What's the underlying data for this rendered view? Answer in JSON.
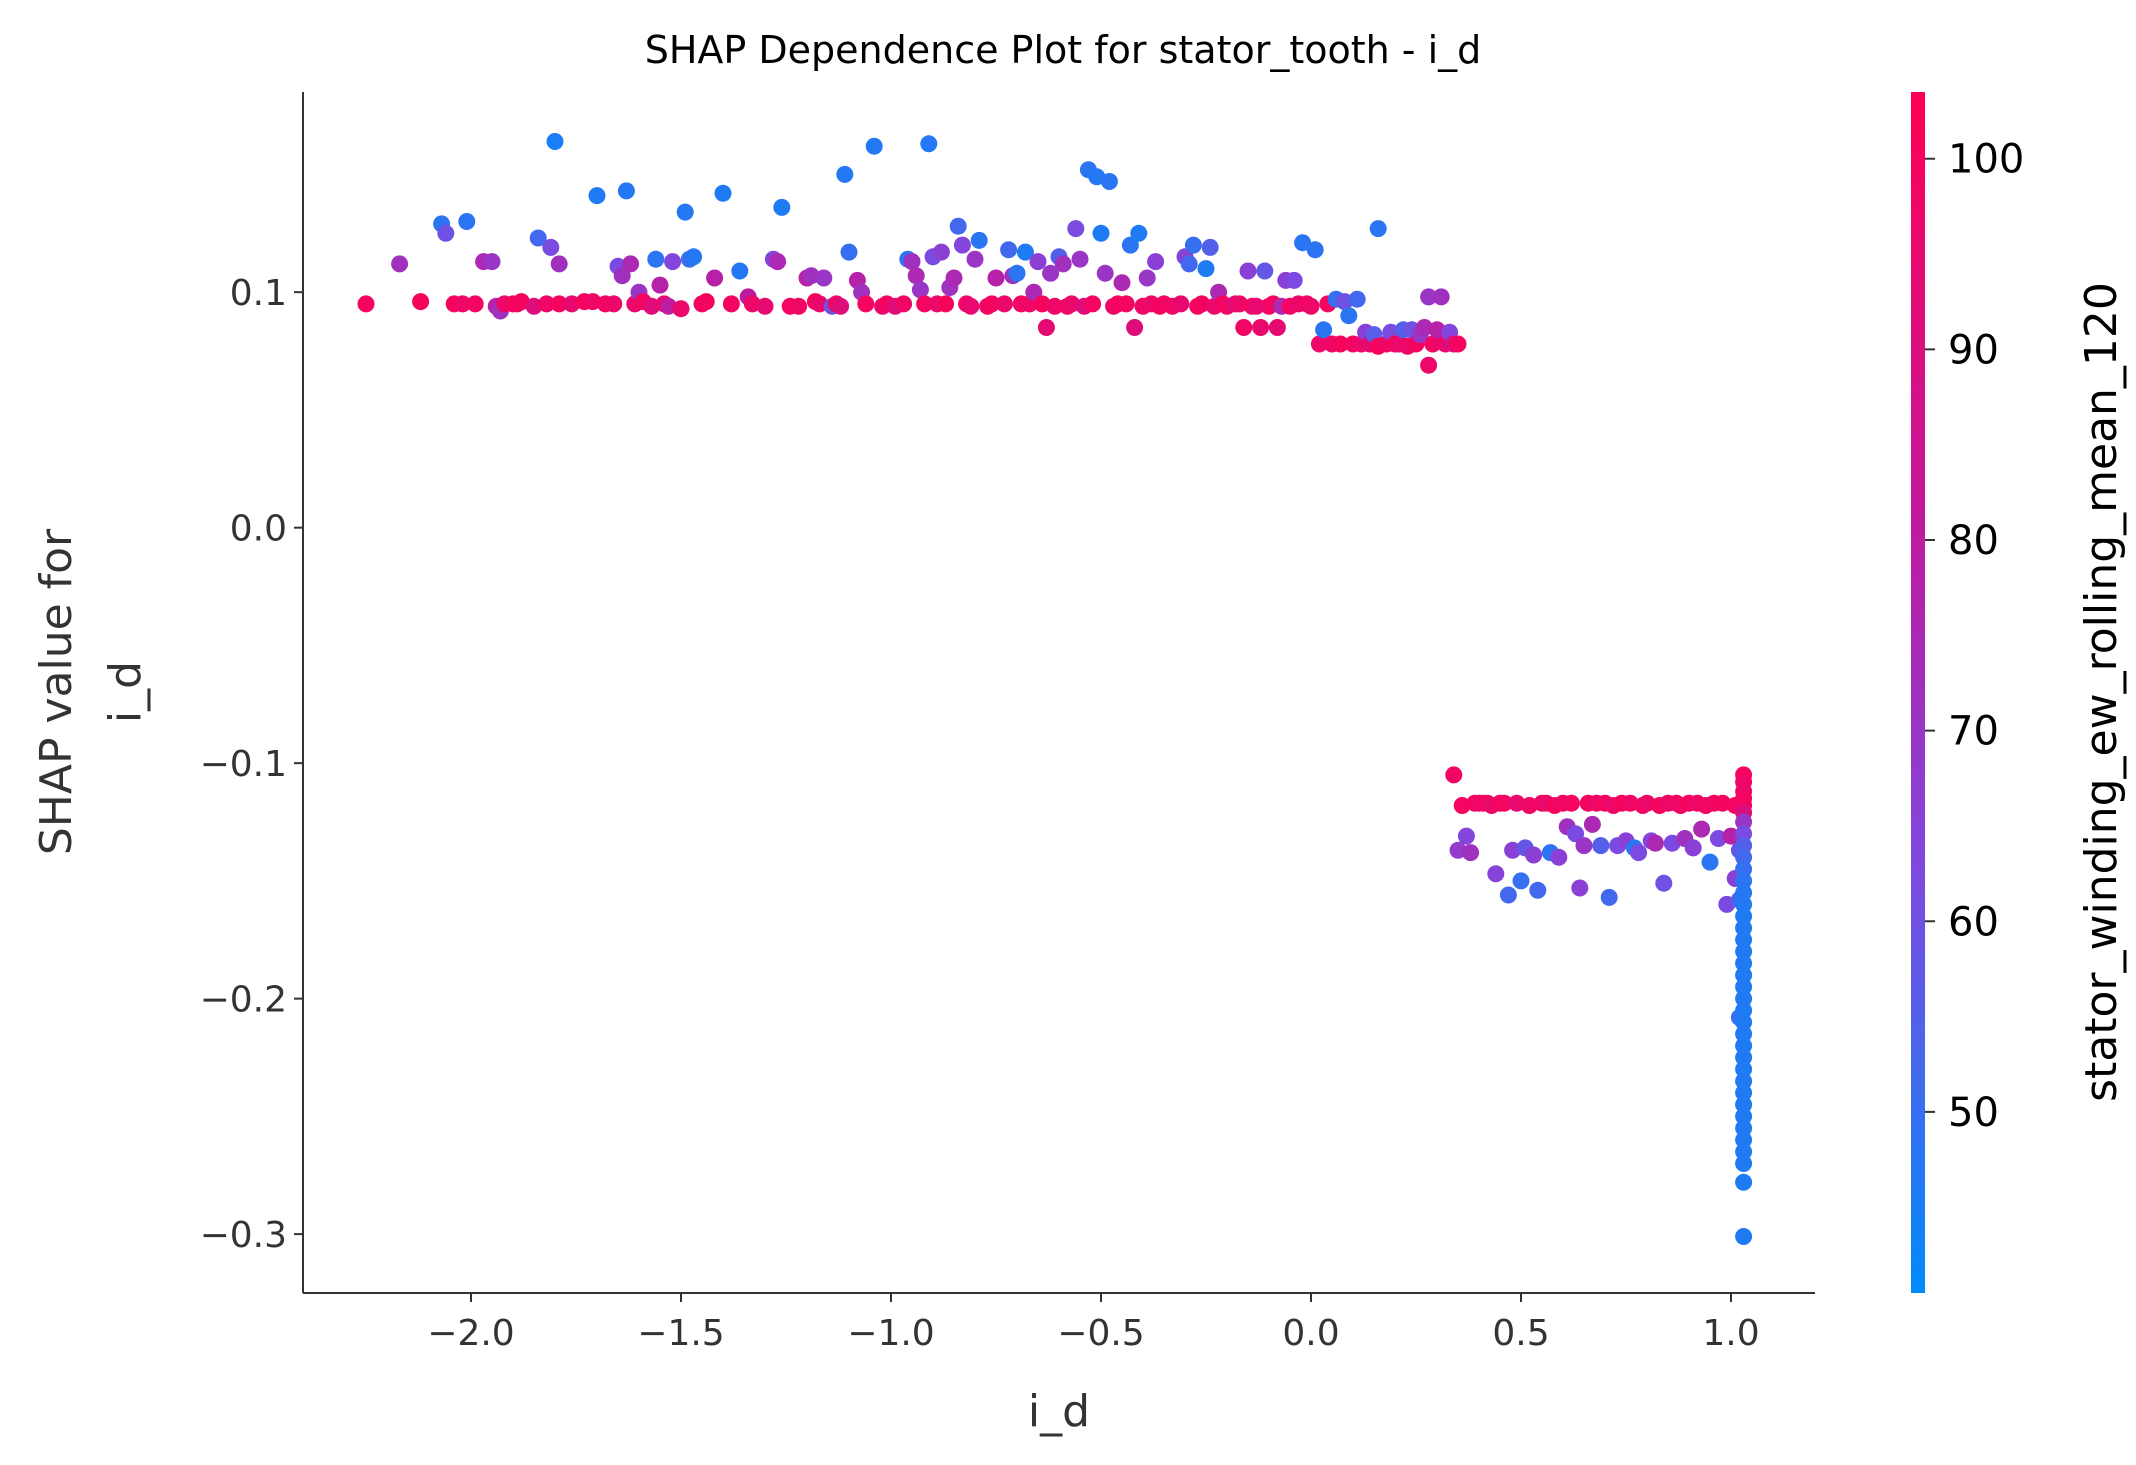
{
  "chart_data": {
    "type": "scatter",
    "title": "SHAP Dependence Plot for stator_tooth - i_d",
    "xlabel": "i_d",
    "ylabel_lines": [
      "SHAP value for",
      "i_d"
    ],
    "xlim": [
      -2.4,
      1.2
    ],
    "ylim": [
      -0.325,
      0.185
    ],
    "x_ticks": [
      -2.0,
      -1.5,
      -1.0,
      -0.5,
      0.0,
      0.5,
      1.0
    ],
    "x_tick_labels": [
      "−2.0",
      "−1.5",
      "−1.0",
      "−0.5",
      "0.0",
      "0.5",
      "1.0"
    ],
    "y_ticks": [
      0.1,
      0.0,
      -0.1,
      -0.2,
      -0.3
    ],
    "y_tick_labels": [
      "0.1",
      "0.0",
      "−0.1",
      "−0.2",
      "−0.3"
    ],
    "grid": false,
    "legend": "none",
    "colorbar": {
      "label": "stator_winding_ew_rolling_mean_120",
      "range": [
        40.5,
        103.5
      ],
      "ticks": [
        50,
        60,
        70,
        80,
        90,
        100
      ],
      "tick_labels": [
        "50",
        "60",
        "70",
        "80",
        "90",
        "100"
      ],
      "colormap": [
        "#008bfb",
        "#7e49e0",
        "#c2189c",
        "#ff0052"
      ]
    },
    "points": [
      [
        -2.25,
        0.095,
        100
      ],
      [
        -2.17,
        0.112,
        72
      ],
      [
        -2.12,
        0.096,
        100
      ],
      [
        -2.07,
        0.129,
        48
      ],
      [
        -2.06,
        0.125,
        60
      ],
      [
        -2.04,
        0.095,
        100
      ],
      [
        -2.02,
        0.095,
        98
      ],
      [
        -2.01,
        0.13,
        48
      ],
      [
        -1.99,
        0.095,
        99
      ],
      [
        -1.97,
        0.113,
        75
      ],
      [
        -1.95,
        0.113,
        70
      ],
      [
        -1.94,
        0.094,
        78
      ],
      [
        -1.93,
        0.092,
        72
      ],
      [
        -1.92,
        0.095,
        96
      ],
      [
        -1.9,
        0.095,
        100
      ],
      [
        -1.89,
        0.095,
        99
      ],
      [
        -1.88,
        0.096,
        100
      ],
      [
        -1.85,
        0.094,
        92
      ],
      [
        -1.84,
        0.123,
        52
      ],
      [
        -1.82,
        0.095,
        98
      ],
      [
        -1.81,
        0.119,
        62
      ],
      [
        -1.8,
        0.164,
        45
      ],
      [
        -1.79,
        0.095,
        100
      ],
      [
        -1.79,
        0.112,
        72
      ],
      [
        -1.76,
        0.095,
        95
      ],
      [
        -1.73,
        0.096,
        100
      ],
      [
        -1.71,
        0.096,
        98
      ],
      [
        -1.7,
        0.141,
        46
      ],
      [
        -1.68,
        0.095,
        99
      ],
      [
        -1.66,
        0.095,
        97
      ],
      [
        -1.65,
        0.111,
        62
      ],
      [
        -1.64,
        0.107,
        72
      ],
      [
        -1.63,
        0.143,
        47
      ],
      [
        -1.62,
        0.112,
        75
      ],
      [
        -1.61,
        0.095,
        96
      ],
      [
        -1.6,
        0.1,
        70
      ],
      [
        -1.59,
        0.096,
        99
      ],
      [
        -1.57,
        0.094,
        92
      ],
      [
        -1.56,
        0.114,
        48
      ],
      [
        -1.55,
        0.103,
        78
      ],
      [
        -1.54,
        0.095,
        95
      ],
      [
        -1.53,
        0.094,
        80
      ],
      [
        -1.52,
        0.113,
        64
      ],
      [
        -1.5,
        0.093,
        96
      ],
      [
        -1.49,
        0.134,
        47
      ],
      [
        -1.48,
        0.114,
        50
      ],
      [
        -1.47,
        0.115,
        47
      ],
      [
        -1.45,
        0.095,
        99
      ],
      [
        -1.44,
        0.096,
        100
      ],
      [
        -1.42,
        0.106,
        78
      ],
      [
        -1.4,
        0.142,
        46
      ],
      [
        -1.38,
        0.095,
        99
      ],
      [
        -1.36,
        0.109,
        47
      ],
      [
        -1.34,
        0.098,
        80
      ],
      [
        -1.33,
        0.095,
        97
      ],
      [
        -1.3,
        0.094,
        95
      ],
      [
        -1.28,
        0.114,
        65
      ],
      [
        -1.27,
        0.113,
        75
      ],
      [
        -1.26,
        0.136,
        46
      ],
      [
        -1.24,
        0.094,
        99
      ],
      [
        -1.22,
        0.094,
        98
      ],
      [
        -1.2,
        0.106,
        78
      ],
      [
        -1.19,
        0.107,
        72
      ],
      [
        -1.18,
        0.096,
        100
      ],
      [
        -1.17,
        0.095,
        96
      ],
      [
        -1.16,
        0.106,
        70
      ],
      [
        -1.14,
        0.094,
        60
      ],
      [
        -1.13,
        0.095,
        98
      ],
      [
        -1.12,
        0.094,
        92
      ],
      [
        -1.11,
        0.15,
        47
      ],
      [
        -1.1,
        0.117,
        50
      ],
      [
        -1.08,
        0.105,
        78
      ],
      [
        -1.07,
        0.1,
        72
      ],
      [
        -1.06,
        0.095,
        99
      ],
      [
        -1.04,
        0.162,
        47
      ],
      [
        -1.02,
        0.094,
        96
      ],
      [
        -1.01,
        0.095,
        100
      ],
      [
        -0.99,
        0.094,
        92
      ],
      [
        -0.97,
        0.095,
        98
      ],
      [
        -0.96,
        0.114,
        48
      ],
      [
        -0.95,
        0.113,
        72
      ],
      [
        -0.94,
        0.107,
        75
      ],
      [
        -0.93,
        0.101,
        70
      ],
      [
        -0.92,
        0.095,
        99
      ],
      [
        -0.91,
        0.163,
        47
      ],
      [
        -0.9,
        0.115,
        62
      ],
      [
        -0.89,
        0.095,
        96
      ],
      [
        -0.88,
        0.117,
        66
      ],
      [
        -0.87,
        0.095,
        100
      ],
      [
        -0.86,
        0.102,
        72
      ],
      [
        -0.85,
        0.106,
        75
      ],
      [
        -0.84,
        0.128,
        52
      ],
      [
        -0.83,
        0.12,
        64
      ],
      [
        -0.82,
        0.095,
        98
      ],
      [
        -0.81,
        0.094,
        95
      ],
      [
        -0.8,
        0.114,
        70
      ],
      [
        -0.79,
        0.122,
        48
      ],
      [
        -0.77,
        0.094,
        99
      ],
      [
        -0.76,
        0.095,
        100
      ],
      [
        -0.75,
        0.106,
        78
      ],
      [
        -0.73,
        0.095,
        96
      ],
      [
        -0.72,
        0.118,
        52
      ],
      [
        -0.71,
        0.107,
        72
      ],
      [
        -0.7,
        0.108,
        48
      ],
      [
        -0.69,
        0.095,
        99
      ],
      [
        -0.68,
        0.117,
        46
      ],
      [
        -0.67,
        0.095,
        98
      ],
      [
        -0.66,
        0.1,
        75
      ],
      [
        -0.65,
        0.113,
        66
      ],
      [
        -0.64,
        0.095,
        100
      ],
      [
        -0.63,
        0.085,
        94
      ],
      [
        -0.62,
        0.108,
        70
      ],
      [
        -0.61,
        0.094,
        97
      ],
      [
        -0.6,
        0.115,
        55
      ],
      [
        -0.59,
        0.112,
        72
      ],
      [
        -0.58,
        0.094,
        99
      ],
      [
        -0.57,
        0.095,
        96
      ],
      [
        -0.56,
        0.127,
        62
      ],
      [
        -0.55,
        0.114,
        70
      ],
      [
        -0.54,
        0.094,
        92
      ],
      [
        -0.53,
        0.152,
        48
      ],
      [
        -0.52,
        0.095,
        99
      ],
      [
        -0.51,
        0.149,
        47
      ],
      [
        -0.5,
        0.125,
        46
      ],
      [
        -0.49,
        0.108,
        70
      ],
      [
        -0.48,
        0.147,
        48
      ],
      [
        -0.47,
        0.094,
        96
      ],
      [
        -0.46,
        0.095,
        100
      ],
      [
        -0.45,
        0.104,
        75
      ],
      [
        -0.44,
        0.095,
        99
      ],
      [
        -0.43,
        0.12,
        48
      ],
      [
        -0.42,
        0.085,
        92
      ],
      [
        -0.41,
        0.125,
        46
      ],
      [
        -0.4,
        0.094,
        98
      ],
      [
        -0.39,
        0.106,
        70
      ],
      [
        -0.38,
        0.095,
        96
      ],
      [
        -0.37,
        0.113,
        66
      ],
      [
        -0.36,
        0.094,
        100
      ],
      [
        -0.35,
        0.095,
        99
      ],
      [
        -0.33,
        0.094,
        98
      ],
      [
        -0.31,
        0.095,
        95
      ],
      [
        -0.3,
        0.115,
        65
      ],
      [
        -0.29,
        0.112,
        52
      ],
      [
        -0.28,
        0.12,
        50
      ],
      [
        -0.27,
        0.094,
        99
      ],
      [
        -0.26,
        0.095,
        100
      ],
      [
        -0.25,
        0.11,
        46
      ],
      [
        -0.24,
        0.119,
        55
      ],
      [
        -0.23,
        0.094,
        96
      ],
      [
        -0.22,
        0.1,
        75
      ],
      [
        -0.21,
        0.095,
        99
      ],
      [
        -0.2,
        0.094,
        98
      ],
      [
        -0.18,
        0.095,
        92
      ],
      [
        -0.17,
        0.095,
        97
      ],
      [
        -0.16,
        0.085,
        98
      ],
      [
        -0.15,
        0.109,
        66
      ],
      [
        -0.14,
        0.094,
        99
      ],
      [
        -0.13,
        0.094,
        95
      ],
      [
        -0.12,
        0.085,
        96
      ],
      [
        -0.11,
        0.109,
        58
      ],
      [
        -0.1,
        0.094,
        98
      ],
      [
        -0.09,
        0.095,
        99
      ],
      [
        -0.08,
        0.085,
        94
      ],
      [
        -0.07,
        0.094,
        75
      ],
      [
        -0.06,
        0.105,
        66
      ],
      [
        -0.05,
        0.094,
        99
      ],
      [
        -0.04,
        0.105,
        62
      ],
      [
        -0.03,
        0.095,
        96
      ],
      [
        -0.02,
        0.121,
        48
      ],
      [
        -0.01,
        0.095,
        99
      ],
      [
        0.0,
        0.094,
        97
      ],
      [
        0.01,
        0.118,
        48
      ],
      [
        0.02,
        0.078,
        97
      ],
      [
        0.03,
        0.084,
        48
      ],
      [
        0.04,
        0.095,
        99
      ],
      [
        0.05,
        0.078,
        98
      ],
      [
        0.06,
        0.097,
        50
      ],
      [
        0.07,
        0.078,
        100
      ],
      [
        0.08,
        0.096,
        60
      ],
      [
        0.09,
        0.09,
        48
      ],
      [
        0.1,
        0.078,
        99
      ],
      [
        0.11,
        0.097,
        52
      ],
      [
        0.12,
        0.078,
        97
      ],
      [
        0.13,
        0.083,
        66
      ],
      [
        0.14,
        0.078,
        95
      ],
      [
        0.15,
        0.082,
        56
      ],
      [
        0.16,
        0.077,
        100
      ],
      [
        0.16,
        0.127,
        48
      ],
      [
        0.18,
        0.078,
        98
      ],
      [
        0.19,
        0.083,
        62
      ],
      [
        0.2,
        0.078,
        99
      ],
      [
        0.21,
        0.078,
        96
      ],
      [
        0.22,
        0.084,
        55
      ],
      [
        0.23,
        0.077,
        97
      ],
      [
        0.24,
        0.084,
        60
      ],
      [
        0.25,
        0.078,
        100
      ],
      [
        0.26,
        0.082,
        70
      ],
      [
        0.27,
        0.085,
        75
      ],
      [
        0.28,
        0.069,
        97
      ],
      [
        0.28,
        0.098,
        70
      ],
      [
        0.29,
        0.078,
        98
      ],
      [
        0.3,
        0.084,
        78
      ],
      [
        0.31,
        0.098,
        72
      ],
      [
        0.32,
        0.078,
        95
      ],
      [
        0.33,
        0.083,
        64
      ],
      [
        0.34,
        0.078,
        90
      ],
      [
        0.35,
        0.078,
        99
      ],
      [
        0.34,
        -0.105,
        98
      ],
      [
        0.35,
        -0.137,
        68
      ],
      [
        0.36,
        -0.118,
        99
      ],
      [
        0.37,
        -0.131,
        64
      ],
      [
        0.38,
        -0.138,
        72
      ],
      [
        0.39,
        -0.117,
        100
      ],
      [
        0.4,
        -0.117,
        97
      ],
      [
        0.41,
        -0.117,
        99
      ],
      [
        0.42,
        -0.117,
        98
      ],
      [
        0.43,
        -0.118,
        96
      ],
      [
        0.44,
        -0.147,
        65
      ],
      [
        0.45,
        -0.117,
        100
      ],
      [
        0.46,
        -0.117,
        99
      ],
      [
        0.47,
        -0.156,
        52
      ],
      [
        0.48,
        -0.137,
        66
      ],
      [
        0.49,
        -0.117,
        95
      ],
      [
        0.5,
        -0.15,
        50
      ],
      [
        0.51,
        -0.136,
        58
      ],
      [
        0.52,
        -0.118,
        98
      ],
      [
        0.53,
        -0.139,
        66
      ],
      [
        0.54,
        -0.154,
        52
      ],
      [
        0.55,
        -0.117,
        99
      ],
      [
        0.56,
        -0.117,
        96
      ],
      [
        0.57,
        -0.138,
        48
      ],
      [
        0.58,
        -0.118,
        100
      ],
      [
        0.59,
        -0.14,
        66
      ],
      [
        0.6,
        -0.117,
        98
      ],
      [
        0.61,
        -0.127,
        72
      ],
      [
        0.62,
        -0.117,
        99
      ],
      [
        0.63,
        -0.13,
        62
      ],
      [
        0.64,
        -0.153,
        66
      ],
      [
        0.65,
        -0.135,
        70
      ],
      [
        0.66,
        -0.117,
        100
      ],
      [
        0.67,
        -0.126,
        75
      ],
      [
        0.68,
        -0.117,
        97
      ],
      [
        0.69,
        -0.135,
        55
      ],
      [
        0.7,
        -0.117,
        99
      ],
      [
        0.71,
        -0.157,
        52
      ],
      [
        0.72,
        -0.118,
        96
      ],
      [
        0.73,
        -0.135,
        62
      ],
      [
        0.74,
        -0.117,
        100
      ],
      [
        0.75,
        -0.133,
        66
      ],
      [
        0.76,
        -0.117,
        98
      ],
      [
        0.77,
        -0.136,
        48
      ],
      [
        0.78,
        -0.138,
        62
      ],
      [
        0.79,
        -0.118,
        99
      ],
      [
        0.8,
        -0.117,
        97
      ],
      [
        0.81,
        -0.133,
        64
      ],
      [
        0.82,
        -0.134,
        75
      ],
      [
        0.83,
        -0.118,
        100
      ],
      [
        0.84,
        -0.151,
        60
      ],
      [
        0.85,
        -0.117,
        96
      ],
      [
        0.86,
        -0.134,
        62
      ],
      [
        0.87,
        -0.117,
        99
      ],
      [
        0.88,
        -0.118,
        98
      ],
      [
        0.89,
        -0.132,
        72
      ],
      [
        0.9,
        -0.117,
        100
      ],
      [
        0.91,
        -0.136,
        66
      ],
      [
        0.92,
        -0.117,
        97
      ],
      [
        0.93,
        -0.128,
        75
      ],
      [
        0.94,
        -0.118,
        99
      ],
      [
        0.95,
        -0.142,
        48
      ],
      [
        0.96,
        -0.117,
        98
      ],
      [
        0.97,
        -0.132,
        62
      ],
      [
        0.98,
        -0.117,
        100
      ],
      [
        0.99,
        -0.16,
        62
      ],
      [
        1.0,
        -0.131,
        78
      ],
      [
        1.01,
        -0.149,
        66
      ],
      [
        1.01,
        -0.118,
        99
      ],
      [
        1.02,
        -0.137,
        58
      ],
      [
        1.02,
        -0.208,
        50
      ],
      [
        1.02,
        -0.158,
        52
      ],
      [
        1.03,
        -0.105,
        100
      ],
      [
        1.03,
        -0.108,
        98
      ],
      [
        1.03,
        -0.112,
        97
      ],
      [
        1.03,
        -0.115,
        99
      ],
      [
        1.03,
        -0.118,
        100
      ],
      [
        1.03,
        -0.121,
        90
      ],
      [
        1.03,
        -0.125,
        70
      ],
      [
        1.03,
        -0.13,
        62
      ],
      [
        1.03,
        -0.135,
        55
      ],
      [
        1.03,
        -0.14,
        52
      ],
      [
        1.03,
        -0.145,
        50
      ],
      [
        1.03,
        -0.15,
        48
      ],
      [
        1.03,
        -0.155,
        47
      ],
      [
        1.03,
        -0.16,
        47
      ],
      [
        1.03,
        -0.165,
        46
      ],
      [
        1.03,
        -0.17,
        46
      ],
      [
        1.03,
        -0.175,
        46
      ],
      [
        1.03,
        -0.18,
        46
      ],
      [
        1.03,
        -0.185,
        46
      ],
      [
        1.03,
        -0.19,
        46
      ],
      [
        1.03,
        -0.195,
        46
      ],
      [
        1.03,
        -0.2,
        46
      ],
      [
        1.03,
        -0.205,
        46
      ],
      [
        1.03,
        -0.21,
        46
      ],
      [
        1.03,
        -0.215,
        46
      ],
      [
        1.03,
        -0.22,
        46
      ],
      [
        1.03,
        -0.225,
        46
      ],
      [
        1.03,
        -0.23,
        46
      ],
      [
        1.03,
        -0.235,
        46
      ],
      [
        1.03,
        -0.24,
        46
      ],
      [
        1.03,
        -0.245,
        46
      ],
      [
        1.03,
        -0.25,
        46
      ],
      [
        1.03,
        -0.255,
        46
      ],
      [
        1.03,
        -0.26,
        46
      ],
      [
        1.03,
        -0.265,
        46
      ],
      [
        1.03,
        -0.27,
        46
      ],
      [
        1.03,
        -0.278,
        46
      ],
      [
        1.03,
        -0.301,
        46
      ]
    ]
  }
}
